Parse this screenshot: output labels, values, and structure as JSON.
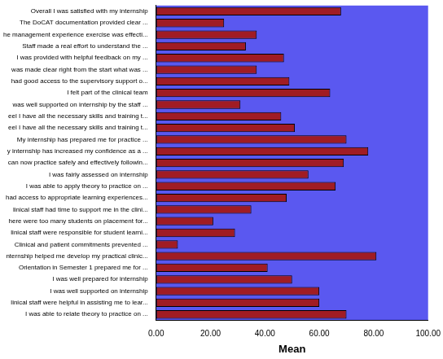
{
  "chart_data": {
    "type": "bar",
    "orientation": "horizontal",
    "x_label": "Mean",
    "categories": [
      "Overall I was satisfied with my internship",
      "The DoCAT documentation provided clear ...",
      "he management experience exercise was effecti...",
      "Staff made a real effort to understand the ...",
      "I was provided with helpful feedback on my ...",
      "was made clear right from the start what was ...",
      "had good access to the supervisory support o...",
      "I felt part of the clinical team",
      "was well supported on internship by the staff ...",
      "eel I have all the necessary skills and training t...",
      "eel I have all the necessary skills and training t...",
      "My internship has prepared me for practice ...",
      "y internship has increased my confidence as a ...",
      "can now practice safely and effectively followin...",
      "I was fairly assessed on internship",
      "I was able to apply theory to practice on ...",
      "had access to appropriate learning experiences...",
      "linical staff had time to support me in the clini...",
      "here were too many students on placement for...",
      "linical staff were responsible for student learni...",
      "Clinical and patient commitments prevented ...",
      "nternship helped me develop my practical clinic...",
      "Orientation in Semester 1 prepared me for ...",
      "I was well prepared for internship",
      "I was well supported on internship",
      "linical staff were helpful in assisting me to lear...",
      "I was able to relate theory to practice on ..."
    ],
    "values": [
      68,
      25,
      37,
      33,
      47,
      37,
      49,
      64,
      31,
      46,
      51,
      70,
      78,
      69,
      56,
      66,
      48,
      35,
      21,
      29,
      8,
      81,
      41,
      50,
      60,
      60,
      70
    ],
    "color": "#a01c24",
    "xlim": [
      0,
      100
    ],
    "xticks": [
      {
        "value": 0,
        "label": "0.00"
      },
      {
        "value": 20,
        "label": "20.00"
      },
      {
        "value": 40,
        "label": "40.00"
      },
      {
        "value": 60,
        "label": "60.00"
      },
      {
        "value": 80,
        "label": "80.00"
      },
      {
        "value": 100,
        "label": "100.00"
      }
    ],
    "grid": false
  }
}
